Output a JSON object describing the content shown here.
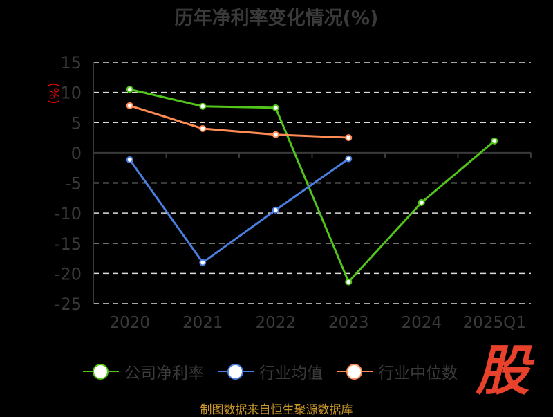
{
  "chart_data": {
    "type": "line",
    "title": "历年净利率变化情况(%)",
    "ylabel": "(%)",
    "xlabel": "",
    "categories": [
      "2020",
      "2021",
      "2022",
      "2023",
      "2024",
      "2025Q1"
    ],
    "ylim": [
      -25,
      15
    ],
    "yticks": [
      15,
      10,
      5,
      0,
      -5,
      -10,
      -15,
      -20,
      -25
    ],
    "grid": true,
    "legend_position": "bottom",
    "series": [
      {
        "name": "公司净利率",
        "color": "#52c41a",
        "values": [
          10.5,
          7.7,
          7.45,
          -21.4,
          -8.25,
          1.95
        ]
      },
      {
        "name": "行业均值",
        "color": "#4a7fe0",
        "values": [
          -1.15,
          -18.2,
          -9.5,
          -1.0,
          null,
          null
        ]
      },
      {
        "name": "行业中位数",
        "color": "#ff8c55",
        "values": [
          7.8,
          4.0,
          3.0,
          2.5,
          null,
          null
        ]
      }
    ]
  },
  "footer": {
    "source": "制图数据来自恒生聚源数据库",
    "logo": "股"
  }
}
